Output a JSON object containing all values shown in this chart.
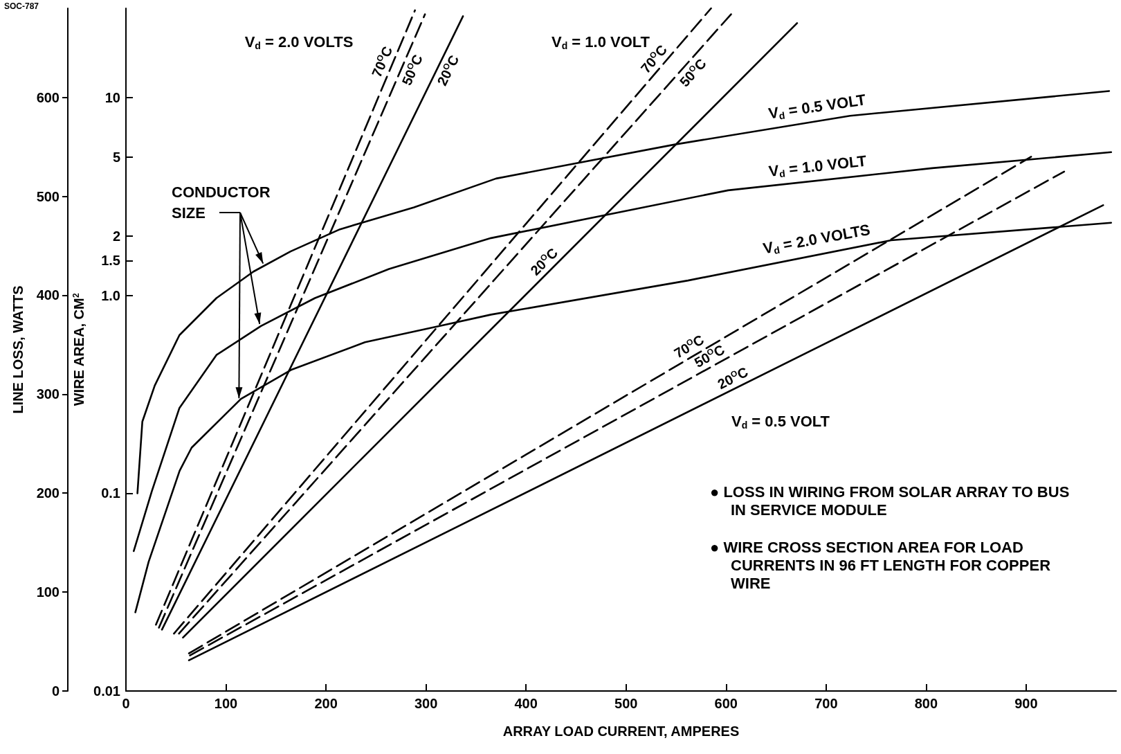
{
  "chart_data": {
    "type": "line",
    "xlabel": "ARRAY LOAD CURRENT, AMPERES",
    "ylabel": "WIRE AREA, CM$^{2}$",
    "y2label": "LINE LOSS, WATTS",
    "xlim": [
      0,
      990
    ],
    "xticks": [
      0,
      100,
      200,
      300,
      400,
      500,
      600,
      700,
      800,
      900
    ],
    "ylim": [
      0.01,
      28.3
    ],
    "yticks": [
      0.01,
      0.1,
      {
        "value": 1,
        "label": "1.0"
      },
      1.5,
      2,
      5,
      10
    ],
    "y2lim": [
      0,
      690
    ],
    "y2ticks": [
      0,
      100,
      200,
      300,
      400,
      500,
      600
    ],
    "log": "y",
    "marker": "none",
    "series": [
      {
        "name": "70$^{O}$C",
        "color": "#000000",
        "line_style": "dashed",
        "axis": "y2",
        "x": [
          30,
          289
        ],
        "values": [
          67,
          688
        ]
      },
      {
        "name": "50$^{O}$C",
        "color": "#000000",
        "line_style": "dashed",
        "axis": "y2",
        "x": [
          33,
          299
        ],
        "values": [
          64,
          684
        ]
      },
      {
        "name": "20$^{O}$C",
        "color": "#000000",
        "line_style": "solid",
        "axis": "y2",
        "x": [
          36,
          337
        ],
        "values": [
          62,
          682
        ]
      },
      {
        "name": "70$^{O}$C",
        "color": "#000000",
        "line_style": "dashed",
        "axis": "y2",
        "x": [
          48,
          585
        ],
        "values": [
          58,
          690
        ]
      },
      {
        "name": "50$^{O}$C",
        "color": "#000000",
        "line_style": "dashed",
        "axis": "y2",
        "x": [
          53,
          605
        ],
        "values": [
          58,
          684
        ]
      },
      {
        "name": "20$^{O}$C",
        "color": "#000000",
        "line_style": "solid",
        "axis": "y2",
        "x": [
          57,
          671
        ],
        "values": [
          54,
          675
        ]
      },
      {
        "name": "70$^{O}$C",
        "color": "#000000",
        "line_style": "dashed",
        "axis": "y2",
        "x": [
          63,
          905
        ],
        "values": [
          38,
          540
        ]
      },
      {
        "name": "50$^{O}$C",
        "color": "#000000",
        "line_style": "dashed",
        "axis": "y2",
        "x": [
          64,
          938
        ],
        "values": [
          36,
          525
        ]
      },
      {
        "name": "20$^{O}$C",
        "color": "#000000",
        "line_style": "solid",
        "axis": "y2",
        "x": [
          63,
          977
        ],
        "values": [
          31,
          491
        ]
      },
      {
        "name": "V$_{d}$ = 0.5 VOLT",
        "color": "#000000",
        "line_style": "solid",
        "x": [
          11.5,
          16.4,
          28.8,
          53.5,
          90.5,
          127.5,
          164.6,
          214,
          288,
          370,
          549,
          724,
          983
        ],
        "values": [
          0.1,
          0.23,
          0.35,
          0.63,
          0.97,
          1.32,
          1.67,
          2.16,
          2.79,
          3.9,
          5.8,
          8.1,
          10.8
        ]
      },
      {
        "name": "V$_{d}$ = 1.0 VOLT",
        "color": "#000000",
        "line_style": "solid",
        "x": [
          7.8,
          25.8,
          53.5,
          90.5,
          135,
          189,
          263,
          365,
          602,
          806,
          985
        ],
        "values": [
          0.051,
          0.102,
          0.27,
          0.5,
          0.7,
          0.97,
          1.36,
          1.95,
          3.4,
          4.4,
          5.3
        ]
      },
      {
        "name": "V$_{d}$ = 2.0 VOLTS",
        "color": "#000000",
        "line_style": "solid",
        "x": [
          9.4,
          22.7,
          53.7,
          65.7,
          115,
          165,
          239,
          313,
          365,
          562,
          765,
          985
        ],
        "values": [
          0.025,
          0.045,
          0.13,
          0.17,
          0.3,
          0.42,
          0.58,
          0.7,
          0.8,
          1.19,
          1.9,
          2.33
        ]
      }
    ],
    "annotations": [
      "SOC-787",
      {
        "text": "CONDUCTOR SIZE",
        "x": 134,
        "y": 0.7
      },
      "● LOSS IN WIRING FROM SOLAR ARRAY TO BUS IN SERVICE MODULE",
      "● WIRE CROSS SECTION AREA FOR LOAD CURRENTS IN 96 FT LENGTH FOR COPPER WIRE",
      "V$_{d}$ = 2.0 VOLTS",
      "V$_{d}$ = 1.0 VOLT",
      "V$_{d}$ = 0.5 VOLT"
    ]
  }
}
